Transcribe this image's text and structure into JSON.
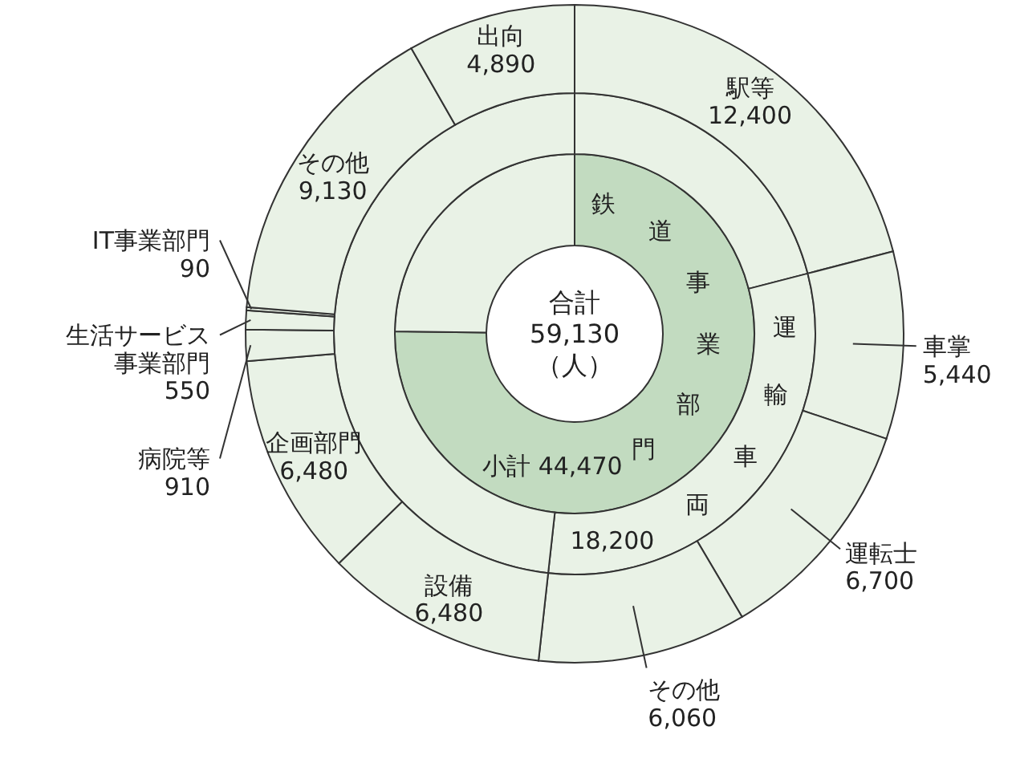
{
  "chart_data": [
    {
      "type": "donut",
      "annotations": [
        "合計",
        "59,130",
        "（人）"
      ],
      "categories": [
        "駅等",
        "車掌",
        "運転士",
        "その他",
        "設備",
        "企画部門",
        "病院等",
        "生活サービス事業部門",
        "IT事業部門",
        "その他",
        "出向"
      ],
      "values": [
        12400,
        5440,
        6700,
        6060,
        6480,
        6480,
        910,
        550,
        90,
        9130,
        4890
      ],
      "colors": [
        "#e9f2e6",
        "#e9f2e6",
        "#e9f2e6",
        "#e9f2e6",
        "#e9f2e6",
        "#e9f2e6",
        "#e9f2e6",
        "#e9f2e6",
        "#e9f2e6",
        "#e9f2e6",
        "#e9f2e6"
      ],
      "value_labels": [
        "12,400",
        "5,440",
        "6,700",
        "6,060",
        "6,480",
        "6,480",
        "910",
        "550",
        "90",
        "9,130",
        "4,890"
      ]
    },
    {
      "type": "donut",
      "categories": [
        "鉄道事業部門",
        null
      ],
      "values": [
        44470,
        14660
      ],
      "colors": [
        "#c2dbc0",
        "#e9f2e6"
      ],
      "value_labels": [
        "小計 44,470",
        null
      ]
    },
    {
      "type": "donut",
      "categories": [
        null,
        "運輸車両",
        null
      ],
      "values": [
        12400,
        18200,
        28530
      ],
      "colors": [
        "#e9f2e6",
        "#e9f2e6",
        "#e9f2e6"
      ],
      "value_labels": [
        null,
        "18,200",
        null
      ]
    }
  ]
}
